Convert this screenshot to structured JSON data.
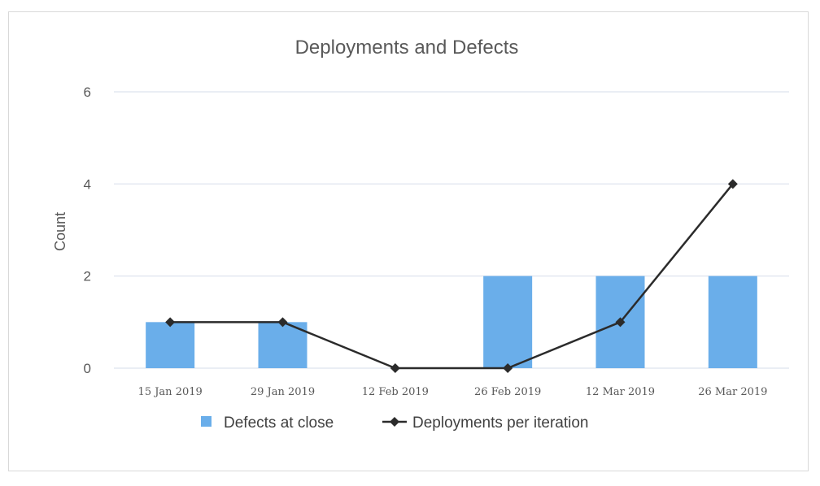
{
  "chart_data": {
    "type": "bar",
    "title": "Deployments and Defects",
    "xlabel": "",
    "ylabel": "Count",
    "ylim": [
      0,
      6
    ],
    "yticks": [
      0,
      2,
      4,
      6
    ],
    "grid": true,
    "legend_position": "bottom",
    "categories": [
      "15 Jan 2019",
      "29 Jan 2019",
      "12 Feb 2019",
      "26 Feb 2019",
      "12 Mar 2019",
      "26 Mar 2019"
    ],
    "series": [
      {
        "name": "Defects at close",
        "type": "bar",
        "color": "#6aaeea",
        "values": [
          1,
          1,
          0,
          2,
          2,
          2
        ]
      },
      {
        "name": "Deployments per iteration",
        "type": "line",
        "color": "#2b2b2b",
        "marker": "diamond",
        "values": [
          1,
          1,
          0,
          0,
          1,
          4
        ]
      }
    ]
  }
}
